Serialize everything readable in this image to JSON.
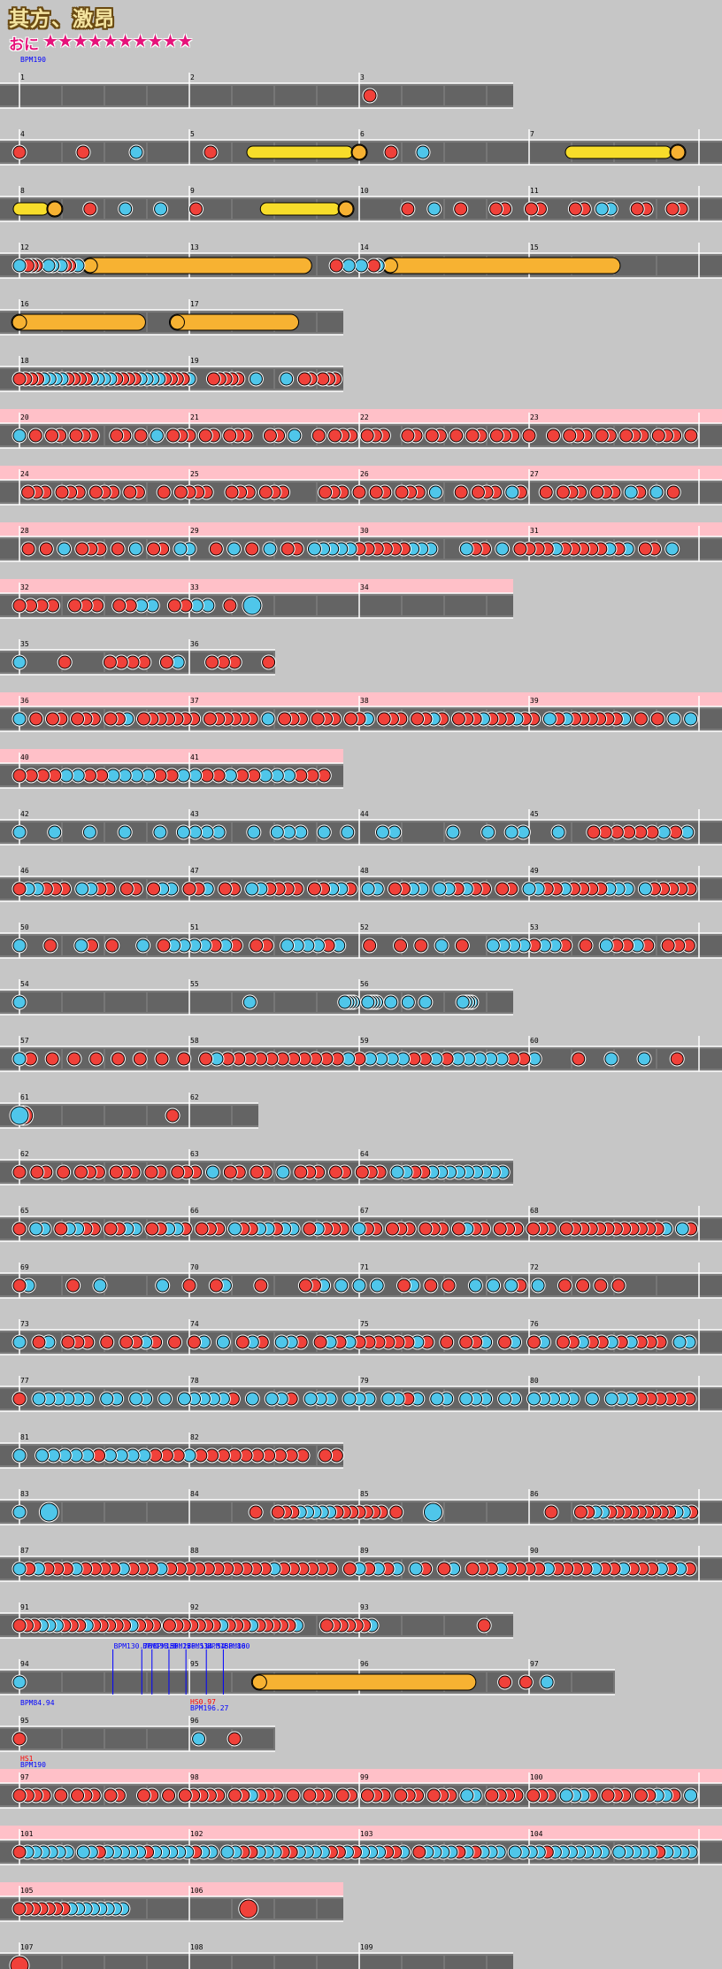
{
  "song": {
    "title": "其方、激昂",
    "course": "おに",
    "stars": "★★★★★★★★★★"
  },
  "colors": {
    "don": "#f0413a",
    "ka": "#4fc6ea",
    "roll": "#f7dd2a",
    "big_roll": "#f7b232",
    "bpm_text": "#0000ff",
    "hs_text": "#ff0000",
    "gogo": "#ffc0c8"
  },
  "rows": [
    {
      "start": 1,
      "bars": 3,
      "notes": "0000000000000000000000000000000000000000000000000000000000000000000000000000000000000000000000000000000000000010000000000000000000000000000000000000000000000000",
      "events": [
        {
          "m": 1,
          "t": "bpm",
          "text": "BPM190"
        }
      ]
    },
    {
      "start": 4,
      "bars": 4,
      "notes": "1000001000020000001000555555555570010020000000000000555555555578"
    },
    {
      "start": 8,
      "bars": 4,
      "notes": "55557000100020002000100000005555555557000000100200100011001100011022001100110",
      "partial": 0.9
    },
    {
      "start": 12,
      "bars": 4,
      "notes": "2011100220211020077777777777777777777777777777777777777777777777777777770000100200200120077777777777777777777777777777777777777777777777777777777700000000000000000"
    },
    {
      "start": 16,
      "bars": 2,
      "notes": "77777777777777777777777777778000077777777777777777777777777780000000000"
    },
    {
      "start": 18,
      "bars": 2,
      "notes": "11112222111122221111222211112000111110020000200110111100",
      "partial": 0.1
    },
    {
      "start": 20,
      "bars": 4,
      "gogo": true,
      "notes": "201011011100110102011101101110011020010111011100110110101101110100101110110111011101"
    },
    {
      "start": 24,
      "bars": 4,
      "gogo": true,
      "notes": "01110111011101100101111001110111000011101011011102001011102100101110111021020100"
    },
    {
      "start": 28,
      "bars": 4,
      "gogo": true,
      "notes": "0101020111010201102200102010201102222211111122200021102011112111112120110200"
    },
    {
      "start": 32,
      "bars": 3,
      "gogo": true,
      "notes": "1111011101122011220104000000000000000000000000",
      "partial": 0.3
    },
    {
      "start": 35,
      "bars": 1.6,
      "notes": "200010001111012001110010",
      "partial": 0.55
    },
    {
      "start": 36,
      "bars": 4,
      "gogo": true,
      "notes": "2010110111011201111111011111102011101110112011101121011121112110212111111201010202"
    },
    {
      "start": 40,
      "bars": 2,
      "gogo": true,
      "notes": "11112211222211221121122211101"
    },
    {
      "start": 42,
      "bars": 4,
      "notes": "2002002002002022220020222020200220000200202200200111111212"
    },
    {
      "start": 46,
      "bars": 4,
      "notes": "1221110221101101220112011022111101122102201122022121101102211211112220211111"
    },
    {
      "start": 50,
      "bars": 4,
      "notes": "200100210100201222212101102222120010010102010022221221010211210111"
    },
    {
      "start": 54,
      "bars": 3,
      "notes": "200000000000000000000000000000000000000000000000000000000000000000000000000000002000000000000000000000000000000002222000022220000200000200000200000000000022220000000000000000000"
    },
    {
      "start": 57,
      "bars": 4,
      "notes": "21010101010101010121111111111121222211212222211200010020020010"
    },
    {
      "start": 61,
      "bars": 1.5,
      "notes": "40003000000000000000000000000000000000000000000000000000000000000000000000000000000000000000000000000000000000000000000000000000000000000000000000000100000000000000000000000000000000000000000000000000000000000000000000000000000000000000000000000000"
    },
    {
      "start": 62,
      "bars": 3,
      "notes": "1011010111011101101110201101102011101101110221122222222222"
    },
    {
      "start": 65,
      "bars": 4,
      "notes": "1022012211011220112210111021122122012111021101110111012110111011101111111111112021"
    },
    {
      "start": 69,
      "bars": 4,
      "notes": "1200001002000000200100120001000011202020200120101002020210200101010100000000"
    },
    {
      "start": 73,
      "bars": 4,
      "notes": "2012011101011210101202012102210121211111121010112012012011211212111022"
    },
    {
      "start": 77,
      "bars": 4,
      "notes": "1022222202202202022222102022102220222022120220222022022222020222111111"
    },
    {
      "start": 81,
      "bars": 2,
      "notes": "202222212222111211111111110110"
    },
    {
      "start": 83,
      "bars": 4,
      "notes": "20004000000000000000000000000000100111222221111111010000400000000000000010001122111111111221"
    },
    {
      "start": 87,
      "bars": 4,
      "notes": "212111211112111211111111111211111101212120210120111211112111121121112121"
    },
    {
      "start": 91,
      "bars": 3,
      "notes": "11122211121111121110111111121112111112000111111200000000000000100000"
    },
    {
      "start": 94,
      "bars": 3.6,
      "notes": "2000000000000000000000000000000000000000000000000000000000000000000000000000000000000000000000000000000000000000000000000000000000000000077777777777777777777777777777777777777777777777777777777777777777777777777777777777777777777777777777777777777777777777777777777800000000000100000000000100000000000200000000000000000000000000000000000000000000000",
      "events": [
        {
          "m": 94,
          "pos": 0.55,
          "t": "bpm",
          "text": "BPM130.76"
        },
        {
          "m": 94,
          "pos": 0.72,
          "t": "bpm",
          "text": "BPM133.8"
        },
        {
          "m": 94,
          "pos": 0.78,
          "t": "bpm",
          "text": "BPM156.27"
        },
        {
          "m": 94,
          "pos": 0.88,
          "t": "bpm",
          "text": "BPM156.51"
        },
        {
          "m": 94,
          "pos": 0.98,
          "t": "bpm",
          "text": "BPM134.54"
        },
        {
          "m": 95,
          "pos": 0.1,
          "t": "bpm",
          "text": "BPM158.86"
        },
        {
          "m": 95,
          "pos": 0.2,
          "t": "bpm",
          "text": "BPM100"
        }
      ]
    },
    {
      "start": 95,
      "bars": 1.6,
      "notes": "100000000000000000000000000000000000000000000000000000000000000000000000000000000000000000000000000000000000000000000000000000000000000000000000000000000000000000000000000000000000200000000000000000000000000000000000100000000000000000000000000000000000000000000000000000000",
      "events": [
        {
          "m": 95,
          "t": "bpm",
          "text": "BPM84.94"
        },
        {
          "m": 96,
          "t": "hs",
          "text": "HS0.97"
        },
        {
          "m": 96,
          "t": "bpm2",
          "text": "BPM196.27"
        }
      ]
    },
    {
      "start": 97,
      "bars": 4,
      "gogo": true,
      "notes": "1111010111011001101011111011211101011101101110111011102201111011102221011101122102",
      "events": [
        {
          "m": 97,
          "t": "hs",
          "text": "HS1"
        },
        {
          "m": 97,
          "t": "bpm2",
          "text": "BPM190"
        }
      ]
    },
    {
      "start": 101,
      "bars": 4,
      "notes": "1222222022122222122222122022112221122221121222112012222121222022221222222202222212222",
      "gogo": true
    },
    {
      "start": 105,
      "bars": 2,
      "gogo": true,
      "notes": "1111111222222220000000000000000300000000000000"
    },
    {
      "start": 107,
      "bars": 3,
      "notes": "3000000000000000000000000000000000000000000000000000000"
    }
  ]
}
